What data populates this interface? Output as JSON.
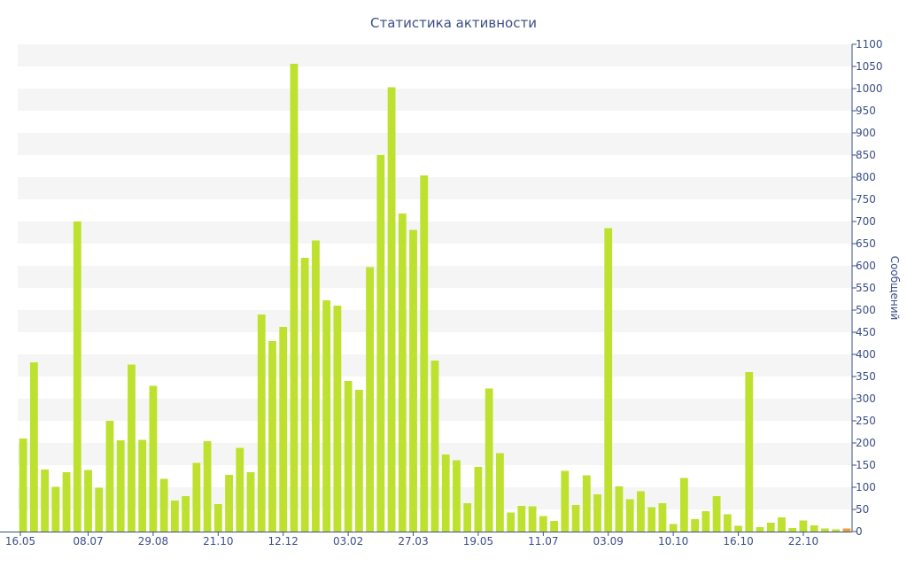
{
  "chart_data": {
    "type": "bar",
    "title": "Статистика активности",
    "ylabel": "Сообщений",
    "ylim": [
      0,
      1100
    ],
    "y_ticks": [
      0,
      50,
      100,
      150,
      200,
      250,
      300,
      350,
      400,
      450,
      500,
      550,
      600,
      650,
      700,
      750,
      800,
      850,
      900,
      950,
      1000,
      1050,
      1100
    ],
    "x_tick_labels": [
      {
        "label": "16.05",
        "index": 0
      },
      {
        "label": "08.07",
        "index": 6
      },
      {
        "label": "29.08",
        "index": 12
      },
      {
        "label": "21.10",
        "index": 18
      },
      {
        "label": "12.12",
        "index": 24
      },
      {
        "label": "03.02",
        "index": 30
      },
      {
        "label": "27.03",
        "index": 36
      },
      {
        "label": "19.05",
        "index": 42
      },
      {
        "label": "11.07",
        "index": 48
      },
      {
        "label": "03.09",
        "index": 54
      },
      {
        "label": "10.10",
        "index": 60
      },
      {
        "label": "16.10",
        "index": 66
      },
      {
        "label": "22.10",
        "index": 72
      }
    ],
    "grid": "horizontal bands",
    "axis_position": "right",
    "bar_color": "#bde12e",
    "last_bar_color": "#e8a23c",
    "values": [
      210,
      382,
      140,
      101,
      134,
      700,
      139,
      99,
      250,
      206,
      377,
      207,
      329,
      119,
      70,
      80,
      155,
      204,
      62,
      128,
      189,
      134,
      490,
      430,
      462,
      1056,
      618,
      657,
      522,
      510,
      340,
      320,
      597,
      850,
      1003,
      718,
      681,
      804,
      386,
      174,
      161,
      64,
      146,
      323,
      177,
      43,
      58,
      57,
      35,
      24,
      137,
      60,
      127,
      84,
      685,
      102,
      73,
      91,
      55,
      64,
      17,
      121,
      28,
      46,
      80,
      39,
      13,
      360,
      10,
      20,
      32,
      8,
      25,
      14,
      7,
      5,
      7
    ]
  }
}
